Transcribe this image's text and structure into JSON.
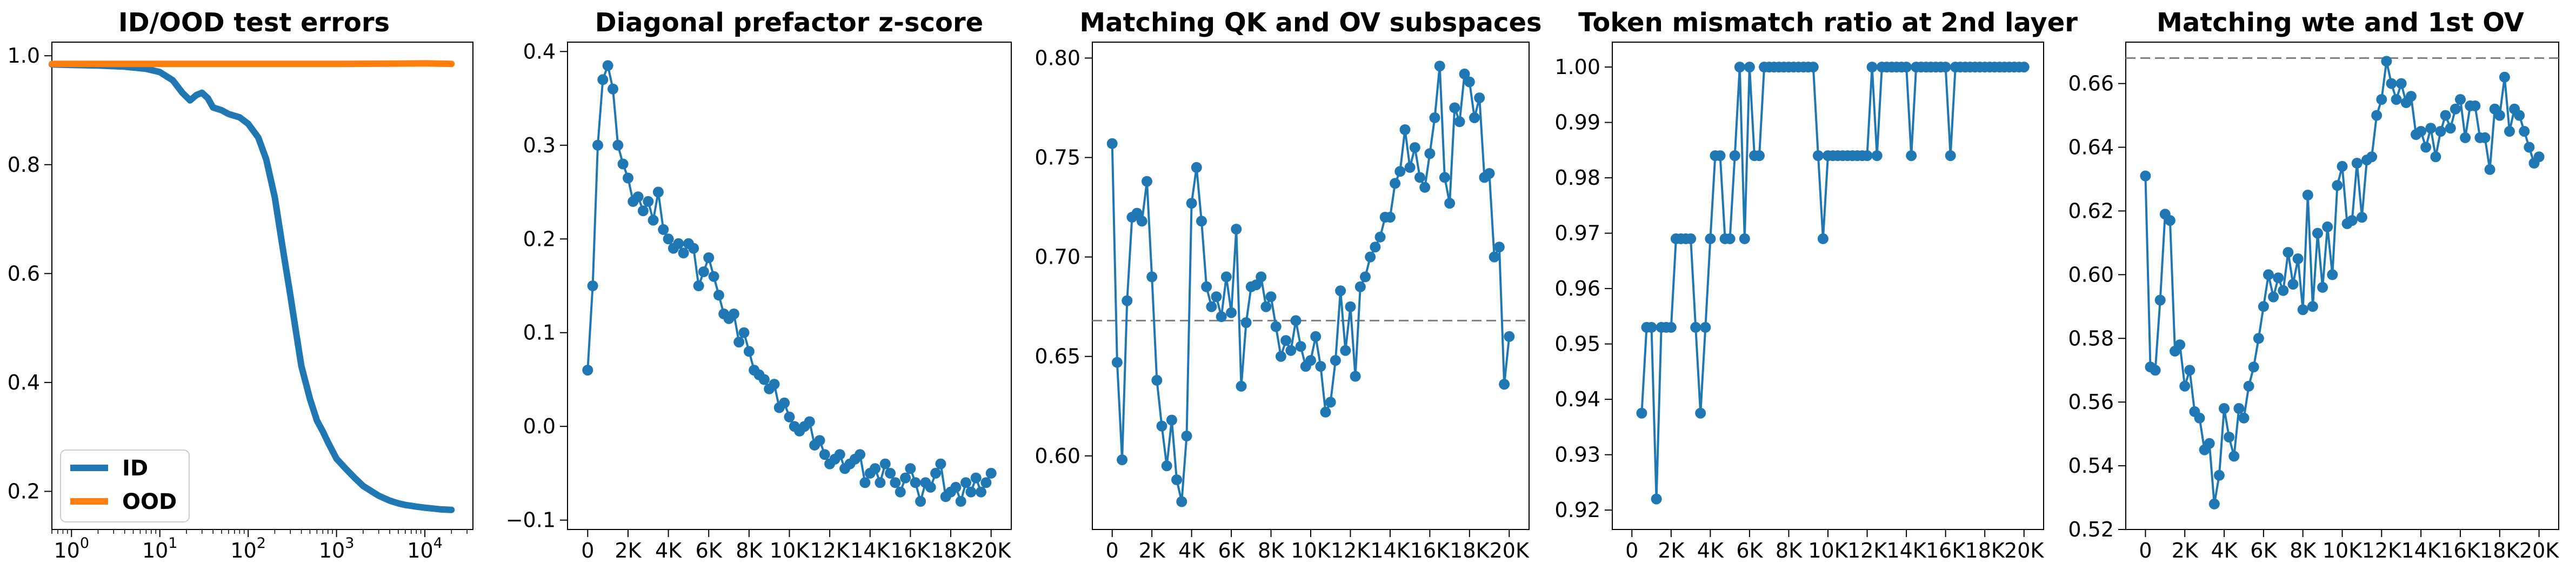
{
  "colors": {
    "blue": "#1f77b4",
    "orange": "#ff7f0e",
    "ref_line": "#808080"
  },
  "chart_data": [
    {
      "type": "line",
      "title": "ID/OOD test errors",
      "xscale": "log",
      "xlim": [
        0.6,
        35000
      ],
      "ylim": [
        0.13,
        1.025
      ],
      "xticks": [
        1,
        10,
        100,
        1000,
        10000
      ],
      "xtick_labels": [
        {
          "base": "10",
          "exp": "0"
        },
        {
          "base": "10",
          "exp": "1"
        },
        {
          "base": "10",
          "exp": "2"
        },
        {
          "base": "10",
          "exp": "3"
        },
        {
          "base": "10",
          "exp": "4"
        }
      ],
      "yticks": [
        0.2,
        0.4,
        0.6,
        0.8,
        1.0
      ],
      "ytick_labels": [
        "0.2",
        "0.4",
        "0.6",
        "0.8",
        "1.0"
      ],
      "legend": {
        "position": "lower-left"
      },
      "series": [
        {
          "name": "ID",
          "color": "#1f77b4",
          "x": [
            0.6,
            1,
            2,
            4,
            7,
            10,
            14,
            18,
            22,
            26,
            30,
            35,
            40,
            50,
            60,
            80,
            100,
            130,
            160,
            200,
            250,
            300,
            350,
            400,
            500,
            600,
            700,
            800,
            1000,
            1300,
            1600,
            2000,
            2500,
            3000,
            4000,
            5000,
            6000,
            8000,
            10000,
            15000,
            20000
          ],
          "y": [
            0.984,
            0.983,
            0.982,
            0.98,
            0.976,
            0.97,
            0.955,
            0.932,
            0.918,
            0.928,
            0.932,
            0.922,
            0.905,
            0.9,
            0.893,
            0.887,
            0.875,
            0.85,
            0.81,
            0.74,
            0.64,
            0.56,
            0.49,
            0.43,
            0.37,
            0.33,
            0.31,
            0.29,
            0.26,
            0.24,
            0.225,
            0.21,
            0.2,
            0.192,
            0.183,
            0.178,
            0.175,
            0.172,
            0.17,
            0.167,
            0.166
          ]
        },
        {
          "name": "OOD",
          "color": "#ff7f0e",
          "x": [
            0.6,
            10,
            100,
            1000,
            10000,
            20000
          ],
          "y": [
            0.985,
            0.985,
            0.985,
            0.985,
            0.986,
            0.985
          ]
        }
      ]
    },
    {
      "type": "scatter-line",
      "title": "Diagonal prefactor z-score",
      "xlim": [
        -1000,
        21000
      ],
      "ylim": [
        -0.11,
        0.41
      ],
      "xticks": [
        0,
        2000,
        4000,
        6000,
        8000,
        10000,
        12000,
        14000,
        16000,
        18000,
        20000
      ],
      "xtick_labels": [
        "0",
        "2K",
        "4K",
        "6K",
        "8K",
        "10K",
        "12K",
        "14K",
        "16K",
        "18K",
        "20K"
      ],
      "yticks": [
        -0.1,
        0.0,
        0.1,
        0.2,
        0.3,
        0.4
      ],
      "ytick_labels": [
        "−0.1",
        "0.0",
        "0.1",
        "0.2",
        "0.3",
        "0.4"
      ],
      "series": [
        {
          "color": "#1f77b4",
          "x": [
            0,
            250,
            500,
            750,
            1000,
            1250,
            1500,
            1750,
            2000,
            2250,
            2500,
            2750,
            3000,
            3250,
            3500,
            3750,
            4000,
            4250,
            4500,
            4750,
            5000,
            5250,
            5500,
            5750,
            6000,
            6250,
            6500,
            6750,
            7000,
            7250,
            7500,
            7750,
            8000,
            8250,
            8500,
            8750,
            9000,
            9250,
            9500,
            9750,
            10000,
            10250,
            10500,
            10750,
            11000,
            11250,
            11500,
            11750,
            12000,
            12250,
            12500,
            12750,
            13000,
            13250,
            13500,
            13750,
            14000,
            14250,
            14500,
            14750,
            15000,
            15250,
            15500,
            15750,
            16000,
            16250,
            16500,
            16750,
            17000,
            17250,
            17500,
            17750,
            18000,
            18250,
            18500,
            18750,
            19000,
            19250,
            19500,
            19750,
            20000
          ],
          "y": [
            0.06,
            0.15,
            0.3,
            0.37,
            0.385,
            0.36,
            0.3,
            0.28,
            0.265,
            0.24,
            0.245,
            0.23,
            0.24,
            0.22,
            0.25,
            0.21,
            0.2,
            0.19,
            0.195,
            0.185,
            0.195,
            0.19,
            0.15,
            0.165,
            0.18,
            0.16,
            0.14,
            0.12,
            0.115,
            0.12,
            0.09,
            0.1,
            0.08,
            0.06,
            0.055,
            0.05,
            0.04,
            0.045,
            0.02,
            0.025,
            0.01,
            0.0,
            -0.005,
            0.0,
            0.005,
            -0.02,
            -0.015,
            -0.03,
            -0.04,
            -0.035,
            -0.03,
            -0.045,
            -0.04,
            -0.035,
            -0.03,
            -0.06,
            -0.05,
            -0.045,
            -0.06,
            -0.04,
            -0.05,
            -0.06,
            -0.07,
            -0.055,
            -0.045,
            -0.06,
            -0.08,
            -0.06,
            -0.065,
            -0.05,
            -0.04,
            -0.075,
            -0.07,
            -0.065,
            -0.08,
            -0.06,
            -0.07,
            -0.055,
            -0.07,
            -0.06,
            -0.05
          ]
        }
      ]
    },
    {
      "type": "scatter-line",
      "title": "Matching QK and OV subspaces",
      "xlim": [
        -1000,
        21000
      ],
      "ylim": [
        0.563,
        0.808
      ],
      "reference_line": 0.668,
      "xticks": [
        0,
        2000,
        4000,
        6000,
        8000,
        10000,
        12000,
        14000,
        16000,
        18000,
        20000
      ],
      "xtick_labels": [
        "0",
        "2K",
        "4K",
        "6K",
        "8K",
        "10K",
        "12K",
        "14K",
        "16K",
        "18K",
        "20K"
      ],
      "yticks": [
        0.6,
        0.65,
        0.7,
        0.75,
        0.8
      ],
      "ytick_labels": [
        "0.60",
        "0.65",
        "0.70",
        "0.75",
        "0.80"
      ],
      "series": [
        {
          "color": "#1f77b4",
          "x": [
            0,
            250,
            500,
            750,
            1000,
            1250,
            1500,
            1750,
            2000,
            2250,
            2500,
            2750,
            3000,
            3250,
            3500,
            3750,
            4000,
            4250,
            4500,
            4750,
            5000,
            5250,
            5500,
            5750,
            6000,
            6250,
            6500,
            6750,
            7000,
            7250,
            7500,
            7750,
            8000,
            8250,
            8500,
            8750,
            9000,
            9250,
            9500,
            9750,
            10000,
            10250,
            10500,
            10750,
            11000,
            11250,
            11500,
            11750,
            12000,
            12250,
            12500,
            12750,
            13000,
            13250,
            13500,
            13750,
            14000,
            14250,
            14500,
            14750,
            15000,
            15250,
            15500,
            15750,
            16000,
            16250,
            16500,
            16750,
            17000,
            17250,
            17500,
            17750,
            18000,
            18250,
            18500,
            18750,
            19000,
            19250,
            19500,
            19750,
            20000
          ],
          "y": [
            0.757,
            0.647,
            0.598,
            0.678,
            0.72,
            0.722,
            0.718,
            0.738,
            0.69,
            0.638,
            0.615,
            0.595,
            0.618,
            0.588,
            0.577,
            0.61,
            0.727,
            0.745,
            0.718,
            0.685,
            0.675,
            0.68,
            0.67,
            0.69,
            0.672,
            0.714,
            0.635,
            0.667,
            0.685,
            0.686,
            0.69,
            0.675,
            0.68,
            0.665,
            0.65,
            0.658,
            0.653,
            0.668,
            0.655,
            0.645,
            0.648,
            0.66,
            0.645,
            0.622,
            0.627,
            0.648,
            0.683,
            0.653,
            0.675,
            0.64,
            0.685,
            0.69,
            0.7,
            0.705,
            0.71,
            0.72,
            0.72,
            0.737,
            0.743,
            0.764,
            0.745,
            0.755,
            0.74,
            0.735,
            0.752,
            0.77,
            0.796,
            0.74,
            0.727,
            0.775,
            0.768,
            0.792,
            0.788,
            0.77,
            0.78,
            0.74,
            0.742,
            0.7,
            0.705,
            0.636,
            0.66
          ]
        }
      ]
    },
    {
      "type": "scatter-line",
      "title": "Token mismatch ratio at 2nd layer",
      "xlim": [
        -1000,
        21000
      ],
      "ylim": [
        0.9165,
        1.0045
      ],
      "xticks": [
        0,
        2000,
        4000,
        6000,
        8000,
        10000,
        12000,
        14000,
        16000,
        18000,
        20000
      ],
      "xtick_labels": [
        "0",
        "2K",
        "4K",
        "6K",
        "8K",
        "10K",
        "12K",
        "14K",
        "16K",
        "18K",
        "20K"
      ],
      "yticks": [
        0.92,
        0.93,
        0.94,
        0.95,
        0.96,
        0.97,
        0.98,
        0.99,
        1.0
      ],
      "ytick_labels": [
        "0.92",
        "0.93",
        "0.94",
        "0.95",
        "0.96",
        "0.97",
        "0.98",
        "0.99",
        "1.00"
      ],
      "series": [
        {
          "color": "#1f77b4",
          "x": [
            500,
            750,
            1000,
            1250,
            1500,
            1750,
            2000,
            2250,
            2500,
            2750,
            3000,
            3250,
            3500,
            3750,
            4000,
            4250,
            4500,
            4750,
            5000,
            5250,
            5500,
            5750,
            6000,
            6250,
            6500,
            6750,
            7000,
            7250,
            7500,
            7750,
            8000,
            8250,
            8500,
            8750,
            9000,
            9250,
            9500,
            9750,
            10000,
            10250,
            10500,
            10750,
            11000,
            11250,
            11500,
            11750,
            12000,
            12250,
            12500,
            12750,
            13000,
            13250,
            13500,
            13750,
            14000,
            14250,
            14500,
            14750,
            15000,
            15250,
            15500,
            15750,
            16000,
            16250,
            16500,
            16750,
            17000,
            17250,
            17500,
            17750,
            18000,
            18250,
            18500,
            18750,
            19000,
            19250,
            19500,
            19750,
            20000
          ],
          "y": [
            0.9375,
            0.953,
            0.953,
            0.922,
            0.953,
            0.953,
            0.953,
            0.969,
            0.969,
            0.969,
            0.969,
            0.953,
            0.9375,
            0.953,
            0.969,
            0.984,
            0.984,
            0.969,
            0.969,
            0.984,
            1.0,
            0.969,
            1.0,
            0.984,
            0.984,
            1.0,
            1.0,
            1.0,
            1.0,
            1.0,
            1.0,
            1.0,
            1.0,
            1.0,
            1.0,
            1.0,
            0.984,
            0.969,
            0.984,
            0.984,
            0.984,
            0.984,
            0.984,
            0.984,
            0.984,
            0.984,
            0.984,
            1.0,
            0.984,
            1.0,
            1.0,
            1.0,
            1.0,
            1.0,
            1.0,
            0.984,
            1.0,
            1.0,
            1.0,
            1.0,
            1.0,
            1.0,
            1.0,
            0.984,
            1.0,
            1.0,
            1.0,
            1.0,
            1.0,
            1.0,
            1.0,
            1.0,
            1.0,
            1.0,
            1.0,
            1.0,
            1.0,
            1.0,
            1.0
          ]
        }
      ]
    },
    {
      "type": "scatter-line",
      "title": "Matching wte and 1st OV",
      "xlim": [
        -1000,
        21000
      ],
      "ylim": [
        0.52,
        0.673
      ],
      "reference_line": 0.668,
      "xticks": [
        0,
        2000,
        4000,
        6000,
        8000,
        10000,
        12000,
        14000,
        16000,
        18000,
        20000
      ],
      "xtick_labels": [
        "0",
        "2K",
        "4K",
        "6K",
        "8K",
        "10K",
        "12K",
        "14K",
        "16K",
        "18K",
        "20K"
      ],
      "yticks": [
        0.52,
        0.54,
        0.56,
        0.58,
        0.6,
        0.62,
        0.64,
        0.66
      ],
      "ytick_labels": [
        "0.52",
        "0.54",
        "0.56",
        "0.58",
        "0.60",
        "0.62",
        "0.64",
        "0.66"
      ],
      "series": [
        {
          "color": "#1f77b4",
          "x": [
            0,
            250,
            500,
            750,
            1000,
            1250,
            1500,
            1750,
            2000,
            2250,
            2500,
            2750,
            3000,
            3250,
            3500,
            3750,
            4000,
            4250,
            4500,
            4750,
            5000,
            5250,
            5500,
            5750,
            6000,
            6250,
            6500,
            6750,
            7000,
            7250,
            7500,
            7750,
            8000,
            8250,
            8500,
            8750,
            9000,
            9250,
            9500,
            9750,
            10000,
            10250,
            10500,
            10750,
            11000,
            11250,
            11500,
            11750,
            12000,
            12250,
            12500,
            12750,
            13000,
            13250,
            13500,
            13750,
            14000,
            14250,
            14500,
            14750,
            15000,
            15250,
            15500,
            15750,
            16000,
            16250,
            16500,
            16750,
            17000,
            17250,
            17500,
            17750,
            18000,
            18250,
            18500,
            18750,
            19000,
            19250,
            19500,
            19750,
            20000
          ],
          "y": [
            0.631,
            0.571,
            0.57,
            0.592,
            0.619,
            0.617,
            0.576,
            0.578,
            0.565,
            0.57,
            0.557,
            0.555,
            0.545,
            0.547,
            0.528,
            0.537,
            0.558,
            0.549,
            0.543,
            0.558,
            0.555,
            0.565,
            0.571,
            0.58,
            0.59,
            0.6,
            0.593,
            0.599,
            0.595,
            0.607,
            0.597,
            0.605,
            0.589,
            0.625,
            0.59,
            0.613,
            0.596,
            0.615,
            0.6,
            0.628,
            0.634,
            0.616,
            0.617,
            0.635,
            0.618,
            0.636,
            0.637,
            0.65,
            0.655,
            0.667,
            0.66,
            0.655,
            0.66,
            0.654,
            0.656,
            0.644,
            0.645,
            0.64,
            0.646,
            0.637,
            0.645,
            0.65,
            0.646,
            0.652,
            0.655,
            0.643,
            0.653,
            0.653,
            0.643,
            0.643,
            0.633,
            0.652,
            0.65,
            0.662,
            0.645,
            0.652,
            0.65,
            0.645,
            0.64,
            0.635,
            0.637
          ]
        }
      ]
    }
  ]
}
